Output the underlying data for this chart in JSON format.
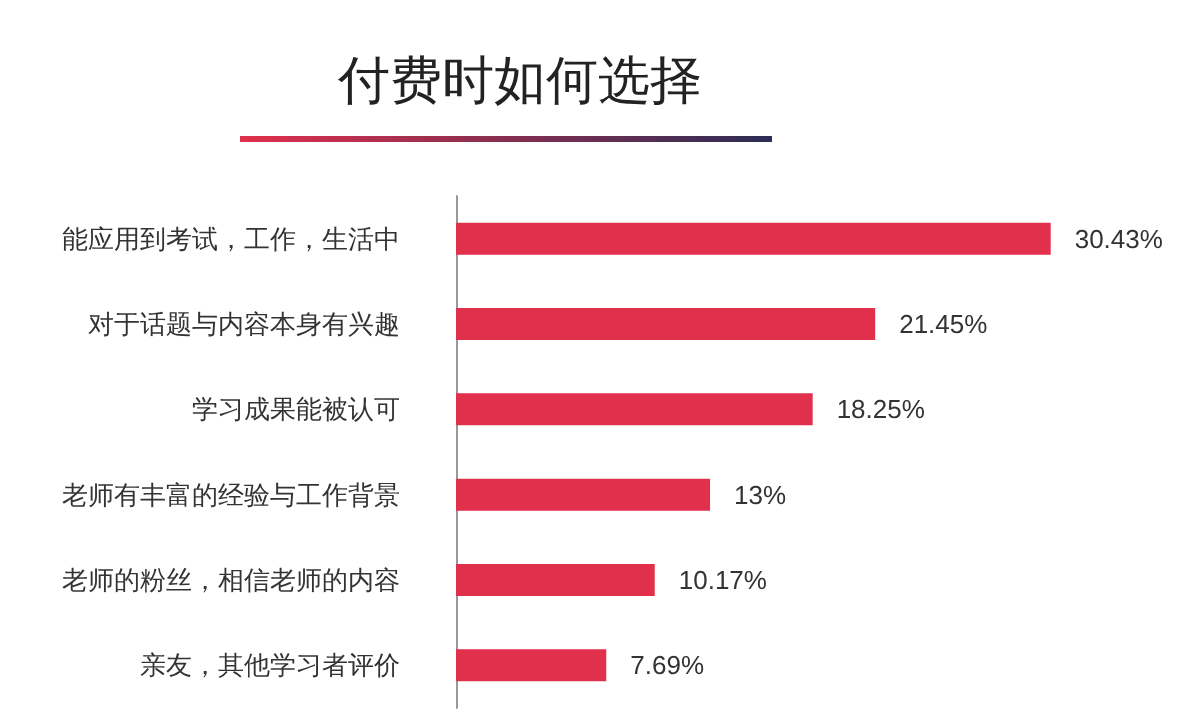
{
  "chart_data": {
    "type": "bar",
    "orientation": "horizontal",
    "title": "付费时如何选择",
    "categories": [
      "能应用到考试，工作，生活中",
      "对于话题与内容本身有兴趣",
      "学习成果能被认可",
      "老师有丰富的经验与工作背景",
      "老师的粉丝，相信老师的内容",
      "亲友，其他学习者评价"
    ],
    "values": [
      30.43,
      21.45,
      18.25,
      13,
      10.17,
      7.69
    ],
    "value_labels": [
      "30.43%",
      "21.45%",
      "18.25%",
      "13%",
      "10.17%",
      "7.69%"
    ],
    "color": "#e0304c",
    "tick_labels": "y"
  }
}
